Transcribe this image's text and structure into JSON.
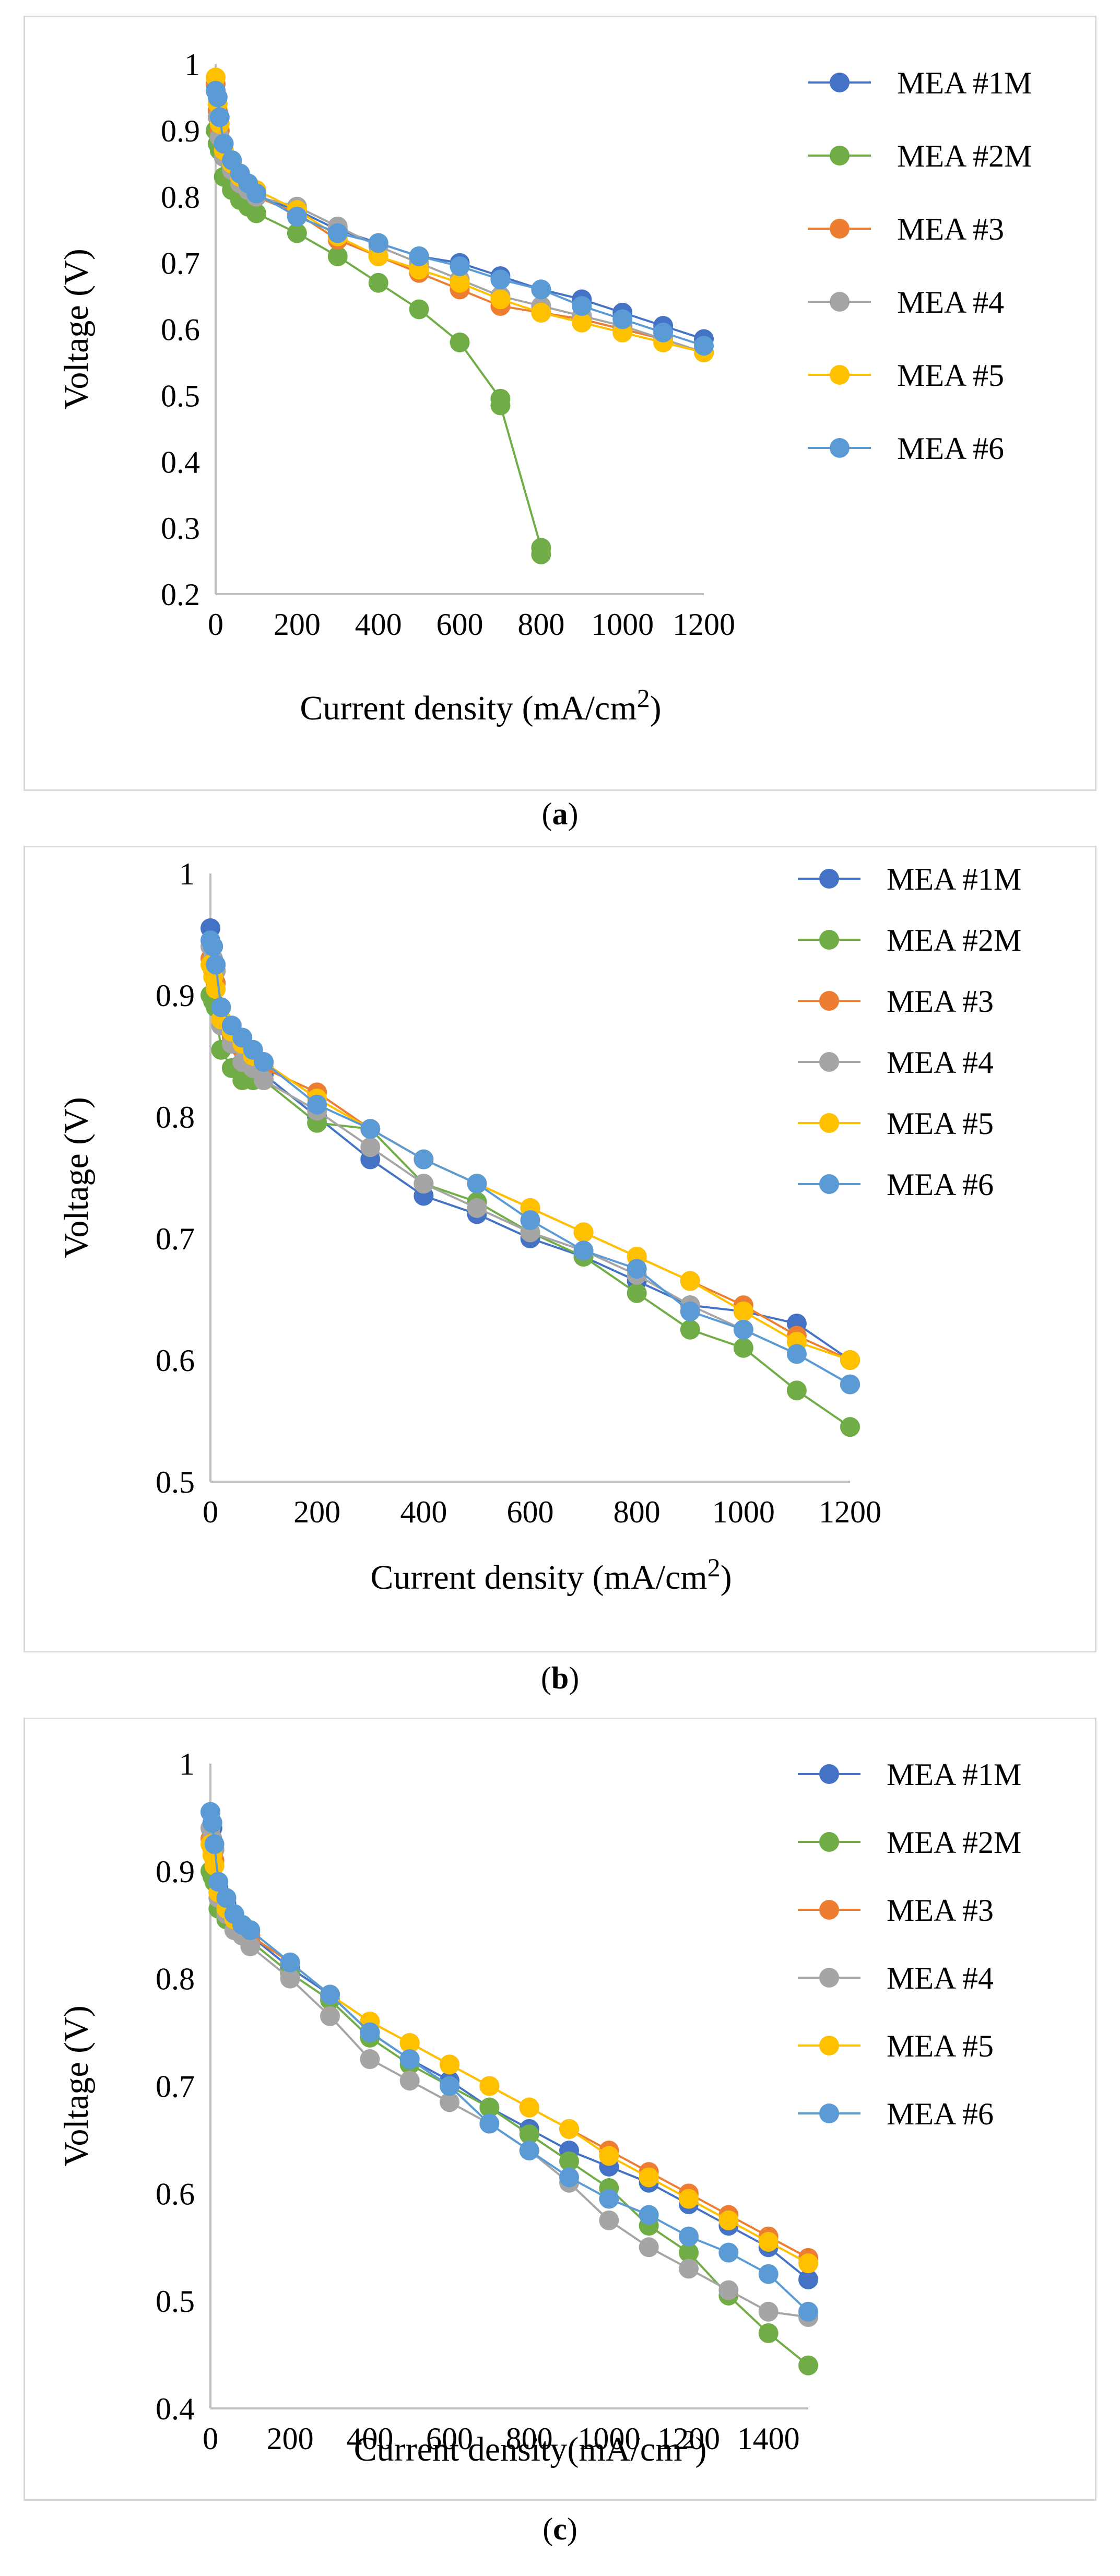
{
  "chart_data": [
    {
      "type": "scatter",
      "mode": "lines+markers",
      "panel_label": "a",
      "xlabel": "Current density (mA/cm",
      "xlabel_sup": "2",
      "xlabel_end": ")",
      "ylabel": "Voltage (V)",
      "xlim": [
        0,
        1200
      ],
      "ylim": [
        0.2,
        1
      ],
      "xticks": [
        "0",
        "200",
        "400",
        "600",
        "800",
        "1000",
        "1200"
      ],
      "yticks": [
        "0.2",
        "0.3",
        "0.4",
        "0.5",
        "0.6",
        "0.7",
        "0.8",
        "0.9",
        "1"
      ],
      "legend_position": "right",
      "grid": false,
      "series": [
        {
          "name": "MEA #1M",
          "color": "#4472C4",
          "x": [
            0,
            5,
            10,
            20,
            40,
            60,
            80,
            100,
            200,
            300,
            400,
            500,
            600,
            700,
            800,
            900,
            1000,
            1100,
            1200
          ],
          "y": [
            0.96,
            0.93,
            0.9,
            0.87,
            0.85,
            0.83,
            0.81,
            0.8,
            0.78,
            0.75,
            0.73,
            0.71,
            0.7,
            0.68,
            0.66,
            0.645,
            0.625,
            0.605,
            0.585
          ]
        },
        {
          "name": "MEA #2M",
          "color": "#70AD47",
          "x": [
            0,
            5,
            10,
            20,
            40,
            60,
            80,
            100,
            200,
            300,
            400,
            500,
            600,
            700,
            700,
            800,
            800
          ],
          "y": [
            0.9,
            0.88,
            0.87,
            0.83,
            0.81,
            0.795,
            0.785,
            0.775,
            0.745,
            0.71,
            0.67,
            0.63,
            0.58,
            0.495,
            0.485,
            0.27,
            0.26
          ]
        },
        {
          "name": "MEA #3",
          "color": "#ED7D31",
          "x": [
            0,
            5,
            10,
            20,
            40,
            60,
            80,
            100,
            200,
            300,
            400,
            500,
            600,
            700,
            800,
            900,
            1000,
            1100,
            1200
          ],
          "y": [
            0.97,
            0.93,
            0.9,
            0.86,
            0.84,
            0.82,
            0.81,
            0.8,
            0.775,
            0.735,
            0.71,
            0.685,
            0.66,
            0.635,
            0.625,
            0.615,
            0.6,
            0.585,
            0.565
          ]
        },
        {
          "name": "MEA #4",
          "color": "#A5A5A5",
          "x": [
            0,
            5,
            10,
            20,
            40,
            60,
            80,
            100,
            200,
            300,
            400,
            500,
            600,
            700,
            800,
            900,
            1000,
            1100,
            1200
          ],
          "y": [
            0.96,
            0.92,
            0.89,
            0.86,
            0.84,
            0.82,
            0.81,
            0.8,
            0.785,
            0.755,
            0.725,
            0.7,
            0.675,
            0.65,
            0.635,
            0.62,
            0.605,
            0.585,
            0.565
          ]
        },
        {
          "name": "MEA #5",
          "color": "#FFC000",
          "x": [
            0,
            5,
            10,
            20,
            40,
            60,
            80,
            100,
            200,
            300,
            400,
            500,
            600,
            700,
            800,
            900,
            1000,
            1100,
            1200
          ],
          "y": [
            0.98,
            0.94,
            0.91,
            0.87,
            0.85,
            0.83,
            0.82,
            0.81,
            0.78,
            0.74,
            0.71,
            0.69,
            0.67,
            0.645,
            0.625,
            0.61,
            0.595,
            0.58,
            0.565
          ]
        },
        {
          "name": "MEA #6",
          "color": "#5B9BD5",
          "x": [
            0,
            5,
            10,
            20,
            40,
            60,
            80,
            100,
            200,
            300,
            400,
            500,
            600,
            700,
            800,
            900,
            1000,
            1100,
            1200
          ],
          "y": [
            0.96,
            0.95,
            0.92,
            0.88,
            0.855,
            0.835,
            0.82,
            0.805,
            0.77,
            0.745,
            0.73,
            0.71,
            0.695,
            0.675,
            0.66,
            0.635,
            0.615,
            0.595,
            0.575
          ]
        }
      ]
    },
    {
      "type": "scatter",
      "mode": "lines+markers",
      "panel_label": "b",
      "xlabel": "Current density (mA/cm",
      "xlabel_sup": "2",
      "xlabel_end": ")",
      "ylabel": "Voltage (V)",
      "xlim": [
        0,
        1200
      ],
      "ylim": [
        0.5,
        1
      ],
      "xticks": [
        "0",
        "200",
        "400",
        "600",
        "800",
        "1000",
        "1200"
      ],
      "yticks": [
        "0.5",
        "0.6",
        "0.7",
        "0.8",
        "0.9",
        "1"
      ],
      "legend_position": "right",
      "grid": false,
      "series": [
        {
          "name": "MEA #1M",
          "color": "#4472C4",
          "x": [
            0,
            5,
            10,
            20,
            40,
            60,
            80,
            100,
            200,
            300,
            400,
            500,
            600,
            700,
            800,
            900,
            1000,
            1100,
            1200
          ],
          "y": [
            0.955,
            0.94,
            0.92,
            0.88,
            0.865,
            0.855,
            0.845,
            0.835,
            0.8,
            0.765,
            0.735,
            0.72,
            0.7,
            0.685,
            0.665,
            0.645,
            0.64,
            0.63,
            0.6
          ]
        },
        {
          "name": "MEA #2M",
          "color": "#70AD47",
          "x": [
            0,
            5,
            10,
            20,
            40,
            60,
            80,
            100,
            200,
            300,
            400,
            500,
            600,
            700,
            800,
            900,
            1000,
            1100,
            1200
          ],
          "y": [
            0.9,
            0.895,
            0.89,
            0.855,
            0.84,
            0.83,
            0.83,
            0.83,
            0.795,
            0.79,
            0.745,
            0.73,
            0.705,
            0.685,
            0.655,
            0.625,
            0.61,
            0.575,
            0.545
          ]
        },
        {
          "name": "MEA #3",
          "color": "#ED7D31",
          "x": [
            0,
            5,
            10,
            20,
            40,
            60,
            80,
            100,
            200,
            300,
            400,
            500,
            600,
            700,
            800,
            900,
            1000,
            1100,
            1200
          ],
          "y": [
            0.93,
            0.92,
            0.91,
            0.88,
            0.865,
            0.855,
            0.85,
            0.84,
            0.82,
            0.79,
            0.765,
            0.745,
            0.725,
            0.705,
            0.685,
            0.665,
            0.645,
            0.62,
            0.6
          ]
        },
        {
          "name": "MEA #4",
          "color": "#A5A5A5",
          "x": [
            0,
            5,
            10,
            20,
            40,
            60,
            80,
            100,
            200,
            300,
            400,
            500,
            600,
            700,
            800,
            900,
            1000,
            1100,
            1200
          ],
          "y": [
            0.94,
            0.93,
            0.92,
            0.875,
            0.86,
            0.845,
            0.84,
            0.83,
            0.805,
            0.775,
            0.745,
            0.725,
            0.705,
            0.69,
            0.67,
            0.645,
            0.625,
            0.605,
            0.58
          ]
        },
        {
          "name": "MEA #5",
          "color": "#FFC000",
          "x": [
            0,
            5,
            10,
            20,
            40,
            60,
            80,
            100,
            200,
            300,
            400,
            500,
            600,
            700,
            800,
            900,
            1000,
            1100,
            1200
          ],
          "y": [
            0.925,
            0.915,
            0.905,
            0.88,
            0.87,
            0.86,
            0.85,
            0.845,
            0.815,
            0.79,
            0.765,
            0.745,
            0.725,
            0.705,
            0.685,
            0.665,
            0.64,
            0.615,
            0.6
          ]
        },
        {
          "name": "MEA #6",
          "color": "#5B9BD5",
          "x": [
            0,
            5,
            10,
            20,
            40,
            60,
            80,
            100,
            200,
            300,
            400,
            500,
            600,
            700,
            800,
            900,
            1000,
            1100,
            1200
          ],
          "y": [
            0.945,
            0.94,
            0.925,
            0.89,
            0.875,
            0.865,
            0.855,
            0.845,
            0.81,
            0.79,
            0.765,
            0.745,
            0.715,
            0.69,
            0.675,
            0.64,
            0.625,
            0.605,
            0.58
          ]
        }
      ]
    },
    {
      "type": "scatter",
      "mode": "lines+markers",
      "panel_label": "c",
      "xlabel": "Current density(mA/cm",
      "xlabel_sup": "2",
      "xlabel_end": ")",
      "ylabel": "Voltage (V)",
      "xlim": [
        0,
        1500
      ],
      "ylim": [
        0.4,
        1
      ],
      "xticks": [
        "0",
        "200",
        "400",
        "600",
        "800",
        "1000",
        "1200",
        "1400"
      ],
      "yticks": [
        "0.4",
        "0.5",
        "0.6",
        "0.7",
        "0.8",
        "0.9",
        "1"
      ],
      "legend_position": "right",
      "grid": false,
      "series": [
        {
          "name": "MEA #1M",
          "color": "#4472C4",
          "x": [
            0,
            5,
            10,
            20,
            40,
            60,
            80,
            100,
            200,
            300,
            400,
            500,
            600,
            700,
            800,
            900,
            1000,
            1100,
            1200,
            1300,
            1400,
            1500
          ],
          "y": [
            0.955,
            0.94,
            0.92,
            0.885,
            0.87,
            0.855,
            0.845,
            0.84,
            0.81,
            0.785,
            0.75,
            0.725,
            0.705,
            0.68,
            0.66,
            0.64,
            0.625,
            0.61,
            0.59,
            0.57,
            0.55,
            0.52
          ]
        },
        {
          "name": "MEA #2M",
          "color": "#70AD47",
          "x": [
            0,
            5,
            10,
            20,
            40,
            60,
            80,
            100,
            200,
            300,
            400,
            500,
            600,
            700,
            800,
            900,
            1000,
            1100,
            1200,
            1300,
            1400,
            1500
          ],
          "y": [
            0.9,
            0.895,
            0.89,
            0.865,
            0.855,
            0.845,
            0.84,
            0.835,
            0.805,
            0.78,
            0.745,
            0.72,
            0.7,
            0.68,
            0.655,
            0.63,
            0.605,
            0.57,
            0.545,
            0.505,
            0.47,
            0.44
          ]
        },
        {
          "name": "MEA #3",
          "color": "#ED7D31",
          "x": [
            0,
            5,
            10,
            20,
            40,
            60,
            80,
            100,
            200,
            300,
            400,
            500,
            600,
            700,
            800,
            900,
            1000,
            1100,
            1200,
            1300,
            1400,
            1500
          ],
          "y": [
            0.93,
            0.92,
            0.91,
            0.88,
            0.865,
            0.855,
            0.845,
            0.84,
            0.815,
            0.785,
            0.76,
            0.74,
            0.72,
            0.7,
            0.68,
            0.66,
            0.64,
            0.62,
            0.6,
            0.58,
            0.56,
            0.54
          ]
        },
        {
          "name": "MEA #4",
          "color": "#A5A5A5",
          "x": [
            0,
            5,
            10,
            20,
            40,
            60,
            80,
            100,
            200,
            300,
            400,
            500,
            600,
            700,
            800,
            900,
            1000,
            1100,
            1200,
            1300,
            1400,
            1500
          ],
          "y": [
            0.94,
            0.93,
            0.92,
            0.875,
            0.86,
            0.845,
            0.84,
            0.83,
            0.8,
            0.765,
            0.725,
            0.705,
            0.685,
            0.665,
            0.64,
            0.61,
            0.575,
            0.55,
            0.53,
            0.51,
            0.49,
            0.485
          ]
        },
        {
          "name": "MEA #5",
          "color": "#FFC000",
          "x": [
            0,
            5,
            10,
            20,
            40,
            60,
            80,
            100,
            200,
            300,
            400,
            500,
            600,
            700,
            800,
            900,
            1000,
            1100,
            1200,
            1300,
            1400,
            1500
          ],
          "y": [
            0.925,
            0.915,
            0.905,
            0.88,
            0.865,
            0.855,
            0.85,
            0.845,
            0.815,
            0.785,
            0.76,
            0.74,
            0.72,
            0.7,
            0.68,
            0.66,
            0.635,
            0.615,
            0.595,
            0.575,
            0.555,
            0.535
          ]
        },
        {
          "name": "MEA #6",
          "color": "#5B9BD5",
          "x": [
            0,
            5,
            10,
            20,
            40,
            60,
            80,
            100,
            200,
            300,
            400,
            500,
            600,
            700,
            800,
            900,
            1000,
            1100,
            1200,
            1300,
            1400,
            1500
          ],
          "y": [
            0.955,
            0.945,
            0.925,
            0.89,
            0.875,
            0.86,
            0.85,
            0.845,
            0.815,
            0.785,
            0.75,
            0.725,
            0.7,
            0.665,
            0.64,
            0.615,
            0.595,
            0.58,
            0.56,
            0.545,
            0.525,
            0.49
          ]
        }
      ]
    }
  ]
}
